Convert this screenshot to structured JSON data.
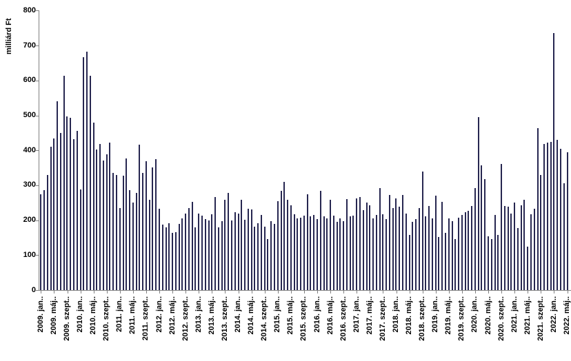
{
  "chart_data": {
    "type": "bar",
    "title": "",
    "xlabel": "",
    "ylabel": "milliárd Ft",
    "ylim": [
      0,
      800
    ],
    "yticks": [
      0,
      100,
      200,
      300,
      400,
      500,
      600,
      700,
      800
    ],
    "grid": false,
    "legend": false,
    "bar_color": "#262650",
    "axis_color": "#808080",
    "text_color": "#000000",
    "x_label_every": 4,
    "tick_labels": [
      "2009. jan..",
      "2009. máj..",
      "2009. szept..",
      "2010. jan..",
      "2010. máj..",
      "2010. szept..",
      "2011. jan..",
      "2011. máj..",
      "2011. szept..",
      "2012. jan..",
      "2012. máj..",
      "2012. szept..",
      "2013. jan..",
      "2013. máj..",
      "2013. szept..",
      "2014. jan..",
      "2014. máj..",
      "2014. szept..",
      "2015. jan..",
      "2015. máj..",
      "2015. szept..",
      "2016. jan..",
      "2016. máj..",
      "2016. szept..",
      "2017. jan..",
      "2017. máj..",
      "2017. szept..",
      "2018. jan..",
      "2018. máj..",
      "2018. szept..",
      "2019. jan..",
      "2019. máj..",
      "2019. szept..",
      "2020. jan..",
      "2020. máj..",
      "2020. szept..",
      "2021. jan..",
      "2021. máj..",
      "2021. szept..",
      "2022. jan..",
      "2022. máj.."
    ],
    "series_period": "monthly, 2009. jan. – 2022. máj.",
    "values": [
      274,
      286,
      329,
      410,
      435,
      540,
      450,
      613,
      498,
      493,
      432,
      455,
      289,
      667,
      682,
      613,
      479,
      402,
      419,
      370,
      388,
      423,
      335,
      329,
      235,
      327,
      377,
      287,
      251,
      279,
      417,
      335,
      369,
      259,
      351,
      374,
      233,
      187,
      180,
      192,
      164,
      165,
      190,
      205,
      220,
      235,
      253,
      180,
      220,
      213,
      204,
      199,
      218,
      266,
      180,
      197,
      258,
      279,
      200,
      222,
      220,
      258,
      202,
      233,
      230,
      182,
      191,
      215,
      182,
      146,
      197,
      189,
      254,
      284,
      310,
      258,
      243,
      218,
      205,
      208,
      213,
      274,
      212,
      215,
      204,
      285,
      212,
      206,
      259,
      213,
      195,
      205,
      197,
      261,
      211,
      213,
      263,
      266,
      228,
      251,
      243,
      206,
      215,
      292,
      218,
      204,
      272,
      235,
      263,
      239,
      272,
      220,
      158,
      195,
      204,
      235,
      340,
      212,
      241,
      206,
      270,
      151,
      253,
      164,
      206,
      197,
      147,
      208,
      215,
      222,
      226,
      241,
      292,
      496,
      358,
      318,
      154,
      146,
      215,
      158,
      362,
      241,
      238,
      220,
      250,
      178,
      243,
      259,
      125,
      217,
      233,
      463,
      330,
      418,
      422,
      425,
      735,
      430,
      405,
      305,
      395
    ]
  }
}
